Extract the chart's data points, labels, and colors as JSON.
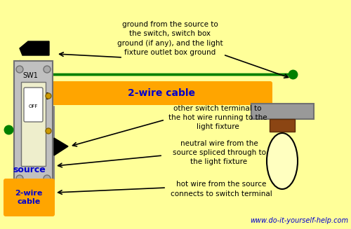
{
  "bg_color": "#FFFF99",
  "title_url": "www.do-it-yourself-help.com",
  "cable_label": "2-wire cable",
  "source_label": "source",
  "source_cable_label": "2-wire\ncable",
  "annotations": [
    "ground from the source to\nthe switch, switch box\nground (if any), and the light\nfixture outlet box ground",
    "other switch terminal to\nthe hot wire running to the\nlight fixture",
    "neutral wire from the\nsource spliced through to\nthe light fixture",
    "hot wire from the source\nconnects to switch terminal"
  ],
  "orange_color": "#FFA500",
  "blue_color": "#0000CC",
  "green_color": "#008000",
  "black_color": "#000000",
  "white_color": "#FFFFFF",
  "gray_color": "#888888",
  "brown_color": "#8B4513",
  "light_gray": "#C0C0C0",
  "dark_gray": "#707070",
  "sw_label": "SW1",
  "off_label": "OFF"
}
